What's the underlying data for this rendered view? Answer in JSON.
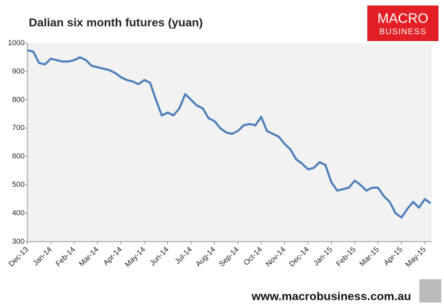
{
  "chart_data": {
    "type": "line",
    "title": "Dalian six month futures (yuan)",
    "logo": [
      "MACRO",
      "BUSINESS"
    ],
    "footer": "www.macrobusiness.com.au",
    "categories": [
      "Dec-13",
      null,
      null,
      null,
      "Jan-14",
      null,
      null,
      null,
      "Feb-14",
      null,
      null,
      null,
      "Mar-14",
      null,
      null,
      null,
      "Apr-14",
      null,
      null,
      null,
      "May-14",
      null,
      null,
      null,
      "Jun-14",
      null,
      null,
      null,
      "Jul-14",
      null,
      null,
      null,
      "Aug-14",
      null,
      null,
      null,
      "Sep-14",
      null,
      null,
      null,
      "Oct-14",
      null,
      null,
      null,
      "Nov-14",
      null,
      null,
      null,
      "Dec-14",
      null,
      null,
      null,
      "Jan-15",
      null,
      null,
      null,
      "Feb-15",
      null,
      null,
      null,
      "Mar-15",
      null,
      null,
      null,
      "Apr-15",
      null,
      null,
      null,
      "May-15",
      null
    ],
    "series": [
      {
        "name": "Dalian six month futures",
        "color": "#4a7ebb",
        "values": [
          975,
          970,
          930,
          925,
          945,
          940,
          935,
          935,
          940,
          950,
          940,
          920,
          915,
          910,
          905,
          895,
          880,
          870,
          865,
          855,
          870,
          860,
          800,
          745,
          755,
          745,
          770,
          820,
          800,
          780,
          770,
          735,
          725,
          700,
          685,
          680,
          690,
          710,
          715,
          710,
          740,
          690,
          680,
          670,
          645,
          625,
          590,
          575,
          555,
          560,
          580,
          570,
          510,
          480,
          485,
          490,
          515,
          500,
          480,
          490,
          490,
          460,
          440,
          400,
          385,
          415,
          440,
          420,
          450,
          435
        ]
      }
    ],
    "ylim": [
      300,
      1000
    ],
    "yticks": [
      300,
      400,
      500,
      600,
      700,
      800,
      900,
      1000
    ]
  }
}
